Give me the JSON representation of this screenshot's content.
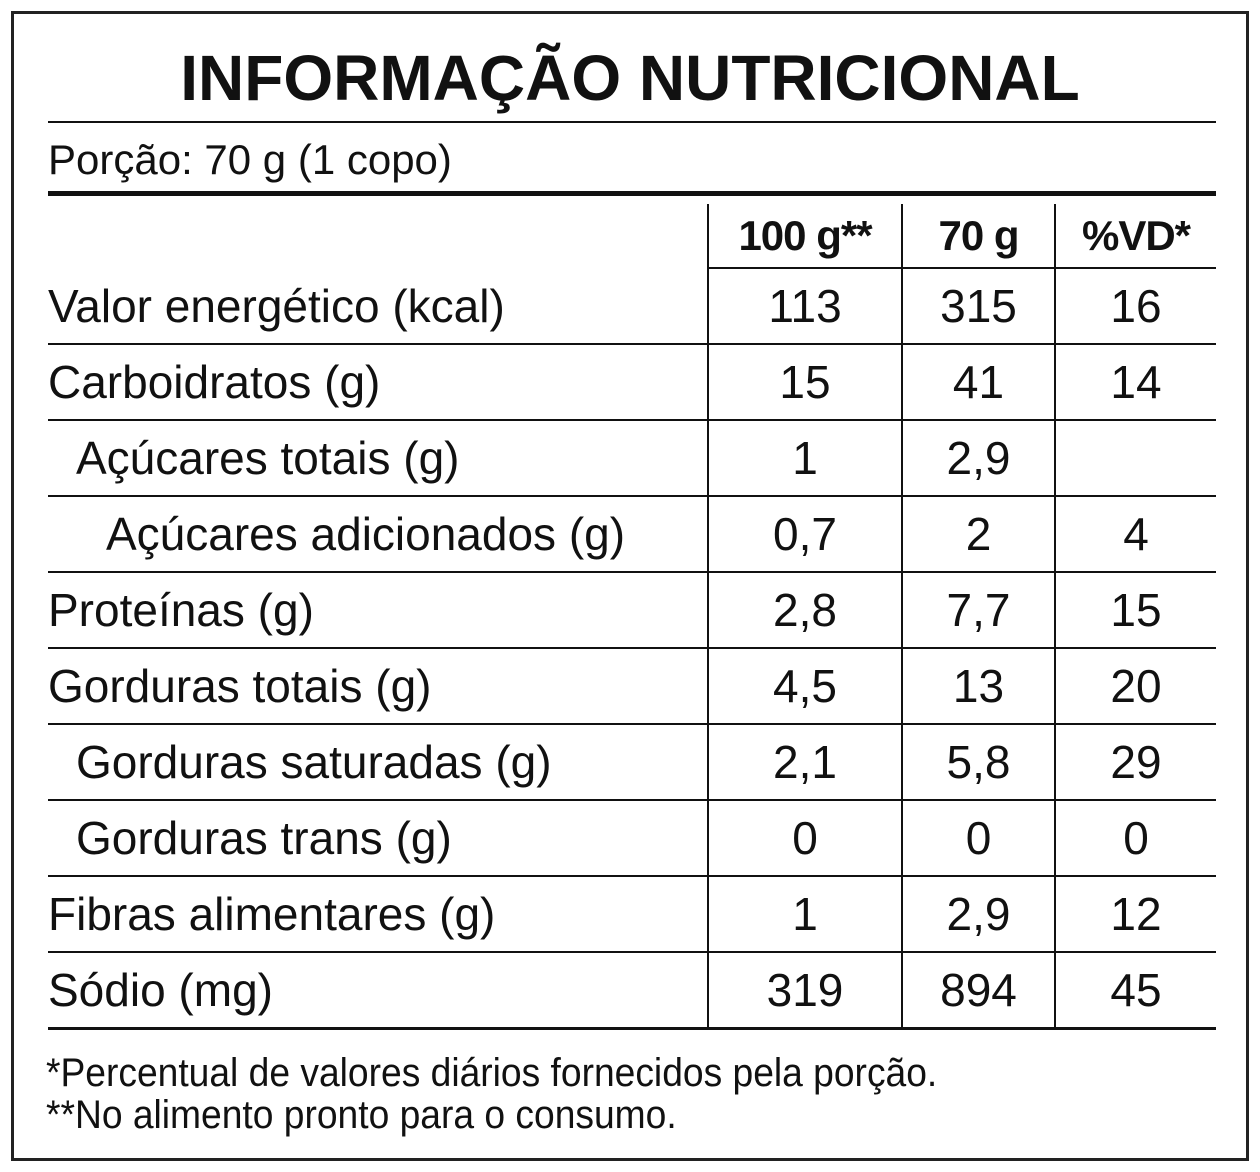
{
  "title": "INFORMAÇÃO NUTRICIONAL",
  "portion": "Porção: 70 g (1 copo)",
  "table": {
    "header": [
      "100 g**",
      "70 g",
      "%VD*"
    ],
    "rows": [
      [
        "Valor energético (kcal)",
        "113",
        "315",
        "16"
      ],
      [
        "Carboidratos (g)",
        "15",
        "41",
        "14"
      ],
      [
        "Açúcares totais (g)",
        "1",
        "2,9",
        null
      ],
      [
        "Açúcares adicionados (g)",
        "0,7",
        "2",
        "4"
      ],
      [
        "Proteínas (g)",
        "2,8",
        "7,7",
        "15"
      ],
      [
        "Gorduras totais (g)",
        "4,5",
        "13",
        "20"
      ],
      [
        "Gorduras saturadas (g)",
        "2,1",
        "5,8",
        "29"
      ],
      [
        "Gorduras trans (g)",
        "0",
        "0",
        "0"
      ],
      [
        "Fibras alimentares (g)",
        "1",
        "2,9",
        "12"
      ],
      [
        "Sódio (mg)",
        "319",
        "894",
        "45"
      ]
    ]
  },
  "footnotes": [
    "*Percentual de valores diários fornecidos pela porção.",
    "**No alimento pronto para o consumo."
  ]
}
